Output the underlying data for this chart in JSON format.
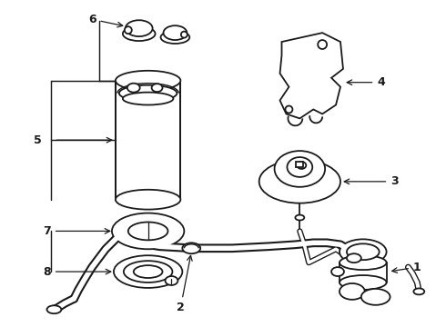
{
  "background_color": "#ffffff",
  "line_color": "#1a1a1a",
  "line_width": 1.3,
  "figsize": [
    4.9,
    3.6
  ],
  "dpi": 100
}
